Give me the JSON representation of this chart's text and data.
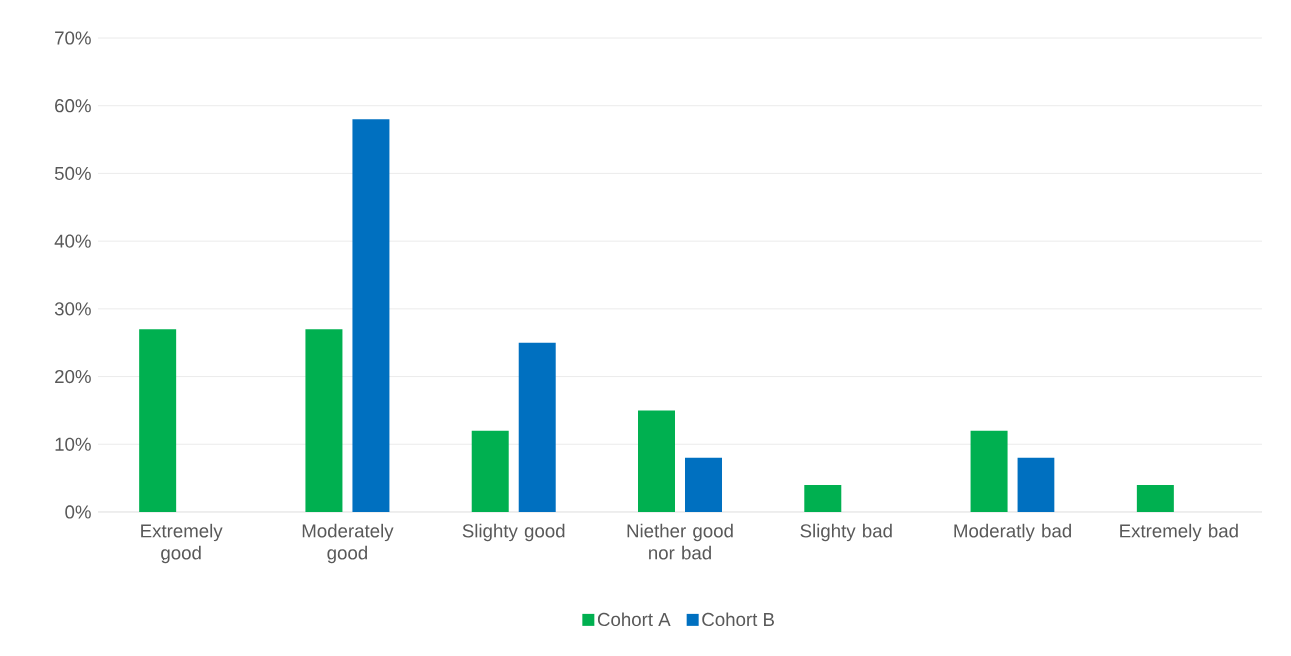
{
  "chart_data": {
    "type": "bar",
    "categories": [
      "Extremely good",
      "Moderately good",
      "Slighty good",
      "Niether good nor bad",
      "Slighty bad",
      "Moderatly bad",
      "Extremely bad"
    ],
    "series": [
      {
        "name": "Cohort A",
        "color": "#00b050",
        "values": [
          27,
          27,
          12,
          15,
          4,
          12,
          4
        ]
      },
      {
        "name": "Cohort B",
        "color": "#0070c0",
        "values": [
          null,
          58,
          25,
          8,
          null,
          8,
          null
        ]
      }
    ],
    "ylim": [
      0,
      70
    ],
    "yticks": [
      {
        "value": 0,
        "label": "0%"
      },
      {
        "value": 10,
        "label": "10%"
      },
      {
        "value": 20,
        "label": "20%"
      },
      {
        "value": 30,
        "label": "30%"
      },
      {
        "value": 40,
        "label": "40%"
      },
      {
        "value": 50,
        "label": "50%"
      },
      {
        "value": 60,
        "label": "60%"
      },
      {
        "value": 70,
        "label": "70%"
      }
    ],
    "grid": "y",
    "legend": "bottom"
  }
}
